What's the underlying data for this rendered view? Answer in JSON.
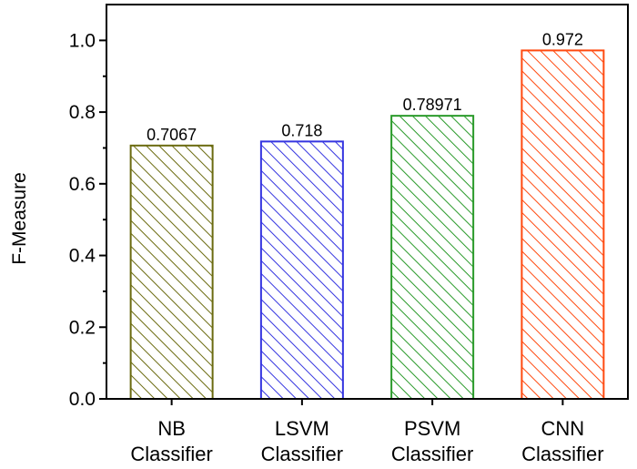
{
  "chart_data": {
    "type": "bar",
    "categories": [
      [
        "NB",
        "Classifier"
      ],
      [
        "LSVM",
        "Classifier"
      ],
      [
        "PSVM",
        "Classifier"
      ],
      [
        "CNN",
        "Classifier"
      ]
    ],
    "values": [
      0.7067,
      0.718,
      0.78971,
      0.972
    ],
    "value_labels": [
      "0.7067",
      "0.718",
      "0.78971",
      "0.972"
    ],
    "bar_colors": [
      "#6b6b10",
      "#3535e0",
      "#2a9a2a",
      "#ff4a10"
    ],
    "bar_fill": "diagonal-hatch",
    "title": "",
    "xlabel": "",
    "ylabel": "F-Measure",
    "ylim": [
      0,
      1.1
    ],
    "yticks": [
      0.0,
      0.2,
      0.4,
      0.6,
      0.8,
      1.0
    ],
    "ytick_labels": [
      "0.0",
      "0.2",
      "0.4",
      "0.6",
      "0.8",
      "1.0"
    ],
    "grid": false,
    "legend": "none"
  }
}
